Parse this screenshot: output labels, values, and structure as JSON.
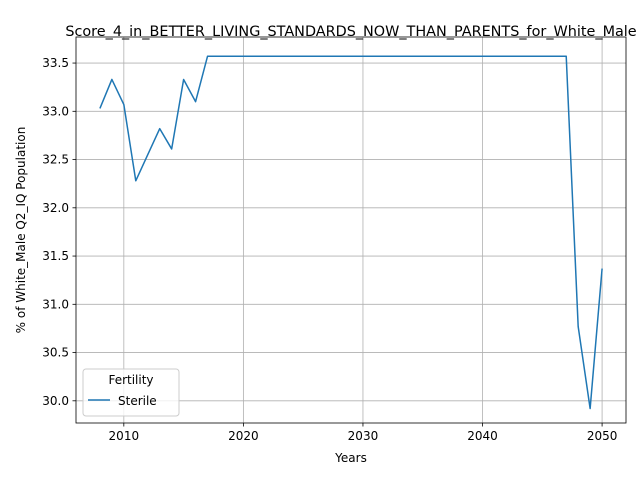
{
  "chart_data": {
    "type": "line",
    "title": "Score_4_in_BETTER_LIVING_STANDARDS_NOW_THAN_PARENTS_for_White_Male",
    "xlabel": "Years",
    "ylabel": "% of White_Male Q2_IQ Population",
    "xlim": [
      2006,
      2052
    ],
    "ylim": [
      29.77,
      33.77
    ],
    "xticks": [
      2010,
      2020,
      2030,
      2040,
      2050
    ],
    "yticks": [
      30.0,
      30.5,
      31.0,
      31.5,
      32.0,
      32.5,
      33.0,
      33.5
    ],
    "grid": true,
    "legend": {
      "title": "Fertility",
      "position": "lower-left"
    },
    "series": [
      {
        "name": "Sterile",
        "color": "#1f77b4",
        "x": [
          2008,
          2009,
          2010,
          2011,
          2012,
          2013,
          2014,
          2015,
          2016,
          2017,
          2018,
          2020,
          2025,
          2030,
          2035,
          2040,
          2045,
          2047,
          2048,
          2049,
          2050
        ],
        "y": [
          33.03,
          33.33,
          33.07,
          32.28,
          32.55,
          32.82,
          32.61,
          33.33,
          33.1,
          33.57,
          33.57,
          33.57,
          33.57,
          33.57,
          33.57,
          33.57,
          33.57,
          33.57,
          30.77,
          29.92,
          31.37
        ]
      }
    ]
  }
}
